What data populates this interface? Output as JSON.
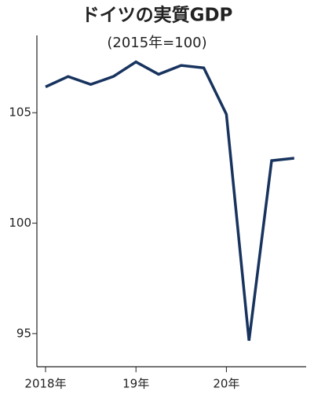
{
  "chart_data": {
    "type": "line",
    "title": "ドイツの実質GDP",
    "subtitle": "(2015年=100)",
    "categories": [
      "2018年",
      null,
      null,
      null,
      "19年",
      null,
      null,
      null,
      "20年",
      null,
      null,
      null
    ],
    "values": [
      106.17,
      106.64,
      106.28,
      106.64,
      107.3,
      106.74,
      107.14,
      107.03,
      104.93,
      94.68,
      102.83,
      102.94
    ],
    "color": "#17335e",
    "ylim": [
      93.5,
      108.5
    ],
    "yticks": [
      95,
      100,
      105
    ],
    "grid": false
  }
}
